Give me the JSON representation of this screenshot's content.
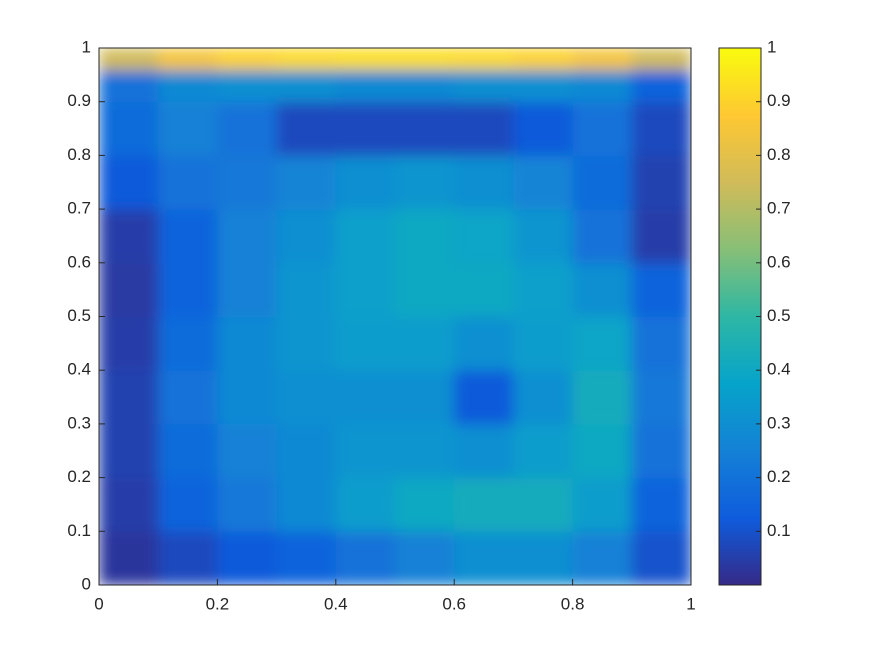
{
  "chart_data": {
    "type": "heatmap",
    "xbins": [
      0,
      0.1,
      0.2,
      0.3,
      0.4,
      0.5,
      0.6,
      0.7,
      0.8,
      0.9,
      1
    ],
    "ybins": [
      0,
      0.1,
      0.2,
      0.3,
      0.4,
      0.5,
      0.6,
      0.7,
      0.8,
      0.9,
      0.96,
      1
    ],
    "z": [
      [
        0.03,
        0.08,
        0.12,
        0.15,
        0.2,
        0.25,
        0.3,
        0.3,
        0.25,
        0.1
      ],
      [
        0.05,
        0.15,
        0.22,
        0.28,
        0.35,
        0.4,
        0.42,
        0.42,
        0.35,
        0.15
      ],
      [
        0.06,
        0.18,
        0.25,
        0.28,
        0.32,
        0.32,
        0.3,
        0.35,
        0.4,
        0.2
      ],
      [
        0.06,
        0.2,
        0.28,
        0.3,
        0.3,
        0.3,
        0.12,
        0.3,
        0.42,
        0.22
      ],
      [
        0.05,
        0.18,
        0.28,
        0.32,
        0.35,
        0.35,
        0.3,
        0.35,
        0.38,
        0.2
      ],
      [
        0.04,
        0.15,
        0.25,
        0.32,
        0.36,
        0.4,
        0.4,
        0.36,
        0.3,
        0.15
      ],
      [
        0.05,
        0.15,
        0.25,
        0.3,
        0.36,
        0.4,
        0.38,
        0.32,
        0.2,
        0.05
      ],
      [
        0.12,
        0.2,
        0.22,
        0.26,
        0.3,
        0.32,
        0.3,
        0.26,
        0.18,
        0.06
      ],
      [
        0.18,
        0.25,
        0.2,
        0.08,
        0.08,
        0.08,
        0.08,
        0.12,
        0.2,
        0.08
      ],
      [
        0.2,
        0.28,
        0.3,
        0.3,
        0.28,
        0.28,
        0.3,
        0.3,
        0.28,
        0.15
      ],
      [
        0.75,
        0.85,
        0.9,
        0.92,
        0.93,
        0.93,
        0.92,
        0.9,
        0.85,
        0.75
      ]
    ],
    "xlim": [
      0,
      1
    ],
    "xticks": [
      0,
      0.2,
      0.4,
      0.6,
      0.8,
      1
    ],
    "ylim": [
      0,
      1
    ],
    "yticks": [
      0,
      0.1,
      0.2,
      0.3,
      0.4,
      0.5,
      0.6,
      0.7,
      0.8,
      0.9,
      1
    ],
    "clim": [
      0,
      1
    ],
    "cticks": [
      0.1,
      0.2,
      0.3,
      0.4,
      0.5,
      0.6,
      0.7,
      0.8,
      0.9,
      1
    ],
    "colormap": [
      "#352a87",
      "#0f5cdd",
      "#1481d6",
      "#06a4ca",
      "#2eb7a4",
      "#87bf77",
      "#d1bb59",
      "#fec832",
      "#f9fb0e"
    ]
  }
}
